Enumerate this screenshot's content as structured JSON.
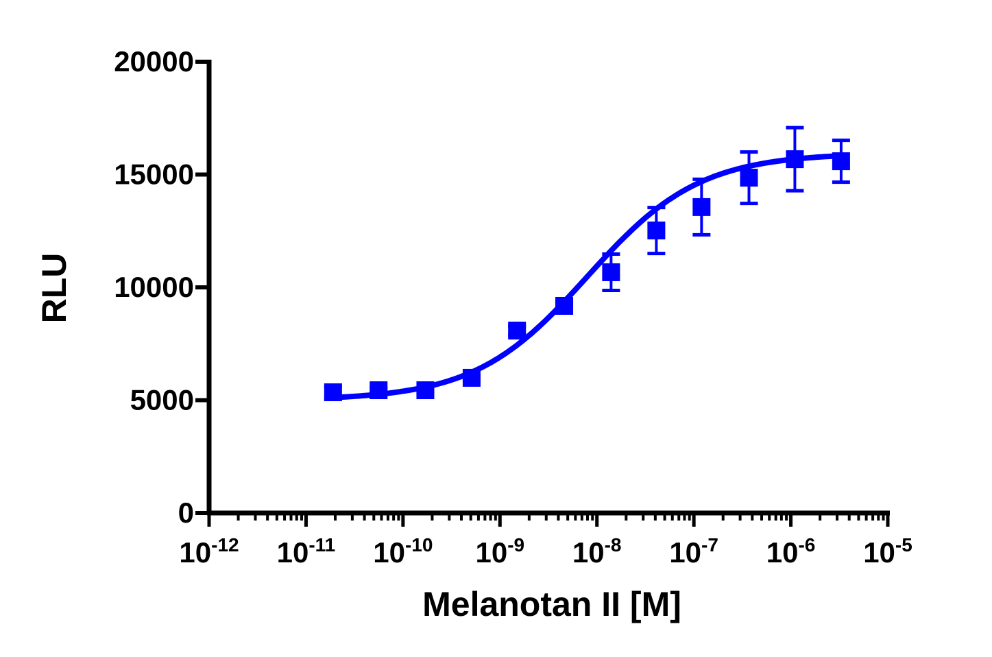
{
  "chart_data": {
    "type": "scatter",
    "title": "",
    "xlabel": "Melanotan II [M]",
    "ylabel": "RLU",
    "x_scale": "log",
    "xlim": [
      1e-12,
      1e-05
    ],
    "ylim": [
      0,
      20000
    ],
    "x_ticks": [
      {
        "base": "10",
        "exp": "-12",
        "value": 1e-12
      },
      {
        "base": "10",
        "exp": "-11",
        "value": 1e-11
      },
      {
        "base": "10",
        "exp": "-10",
        "value": 1e-10
      },
      {
        "base": "10",
        "exp": "-9",
        "value": 1e-09
      },
      {
        "base": "10",
        "exp": "-8",
        "value": 1e-08
      },
      {
        "base": "10",
        "exp": "-7",
        "value": 1e-07
      },
      {
        "base": "10",
        "exp": "-6",
        "value": 1e-06
      },
      {
        "base": "10",
        "exp": "-5",
        "value": 1e-05
      }
    ],
    "y_ticks": [
      "0",
      "5000",
      "10000",
      "15000",
      "20000"
    ],
    "grid": false,
    "color": "#0000ff",
    "marker": "square",
    "series": [
      {
        "x": [
          1.9e-11,
          5.6e-11,
          1.7e-10,
          5.1e-10,
          1.5e-09,
          4.6e-09,
          1.4e-08,
          4.1e-08,
          1.2e-07,
          3.7e-07,
          1.1e-06,
          3.3e-06
        ],
        "y": [
          5350,
          5440,
          5440,
          5990,
          8085,
          9180,
          10670,
          12520,
          13560,
          14860,
          15680,
          15590
        ],
        "error": [
          250,
          100,
          100,
          100,
          200,
          150,
          805,
          1018,
          1231,
          1140,
          1398,
          927
        ]
      }
    ],
    "fit": {
      "model": "sigmoidal dose-response",
      "bottom": 5000,
      "top": 15950,
      "log_ec50": -8.1,
      "hill_slope": 0.75
    }
  }
}
